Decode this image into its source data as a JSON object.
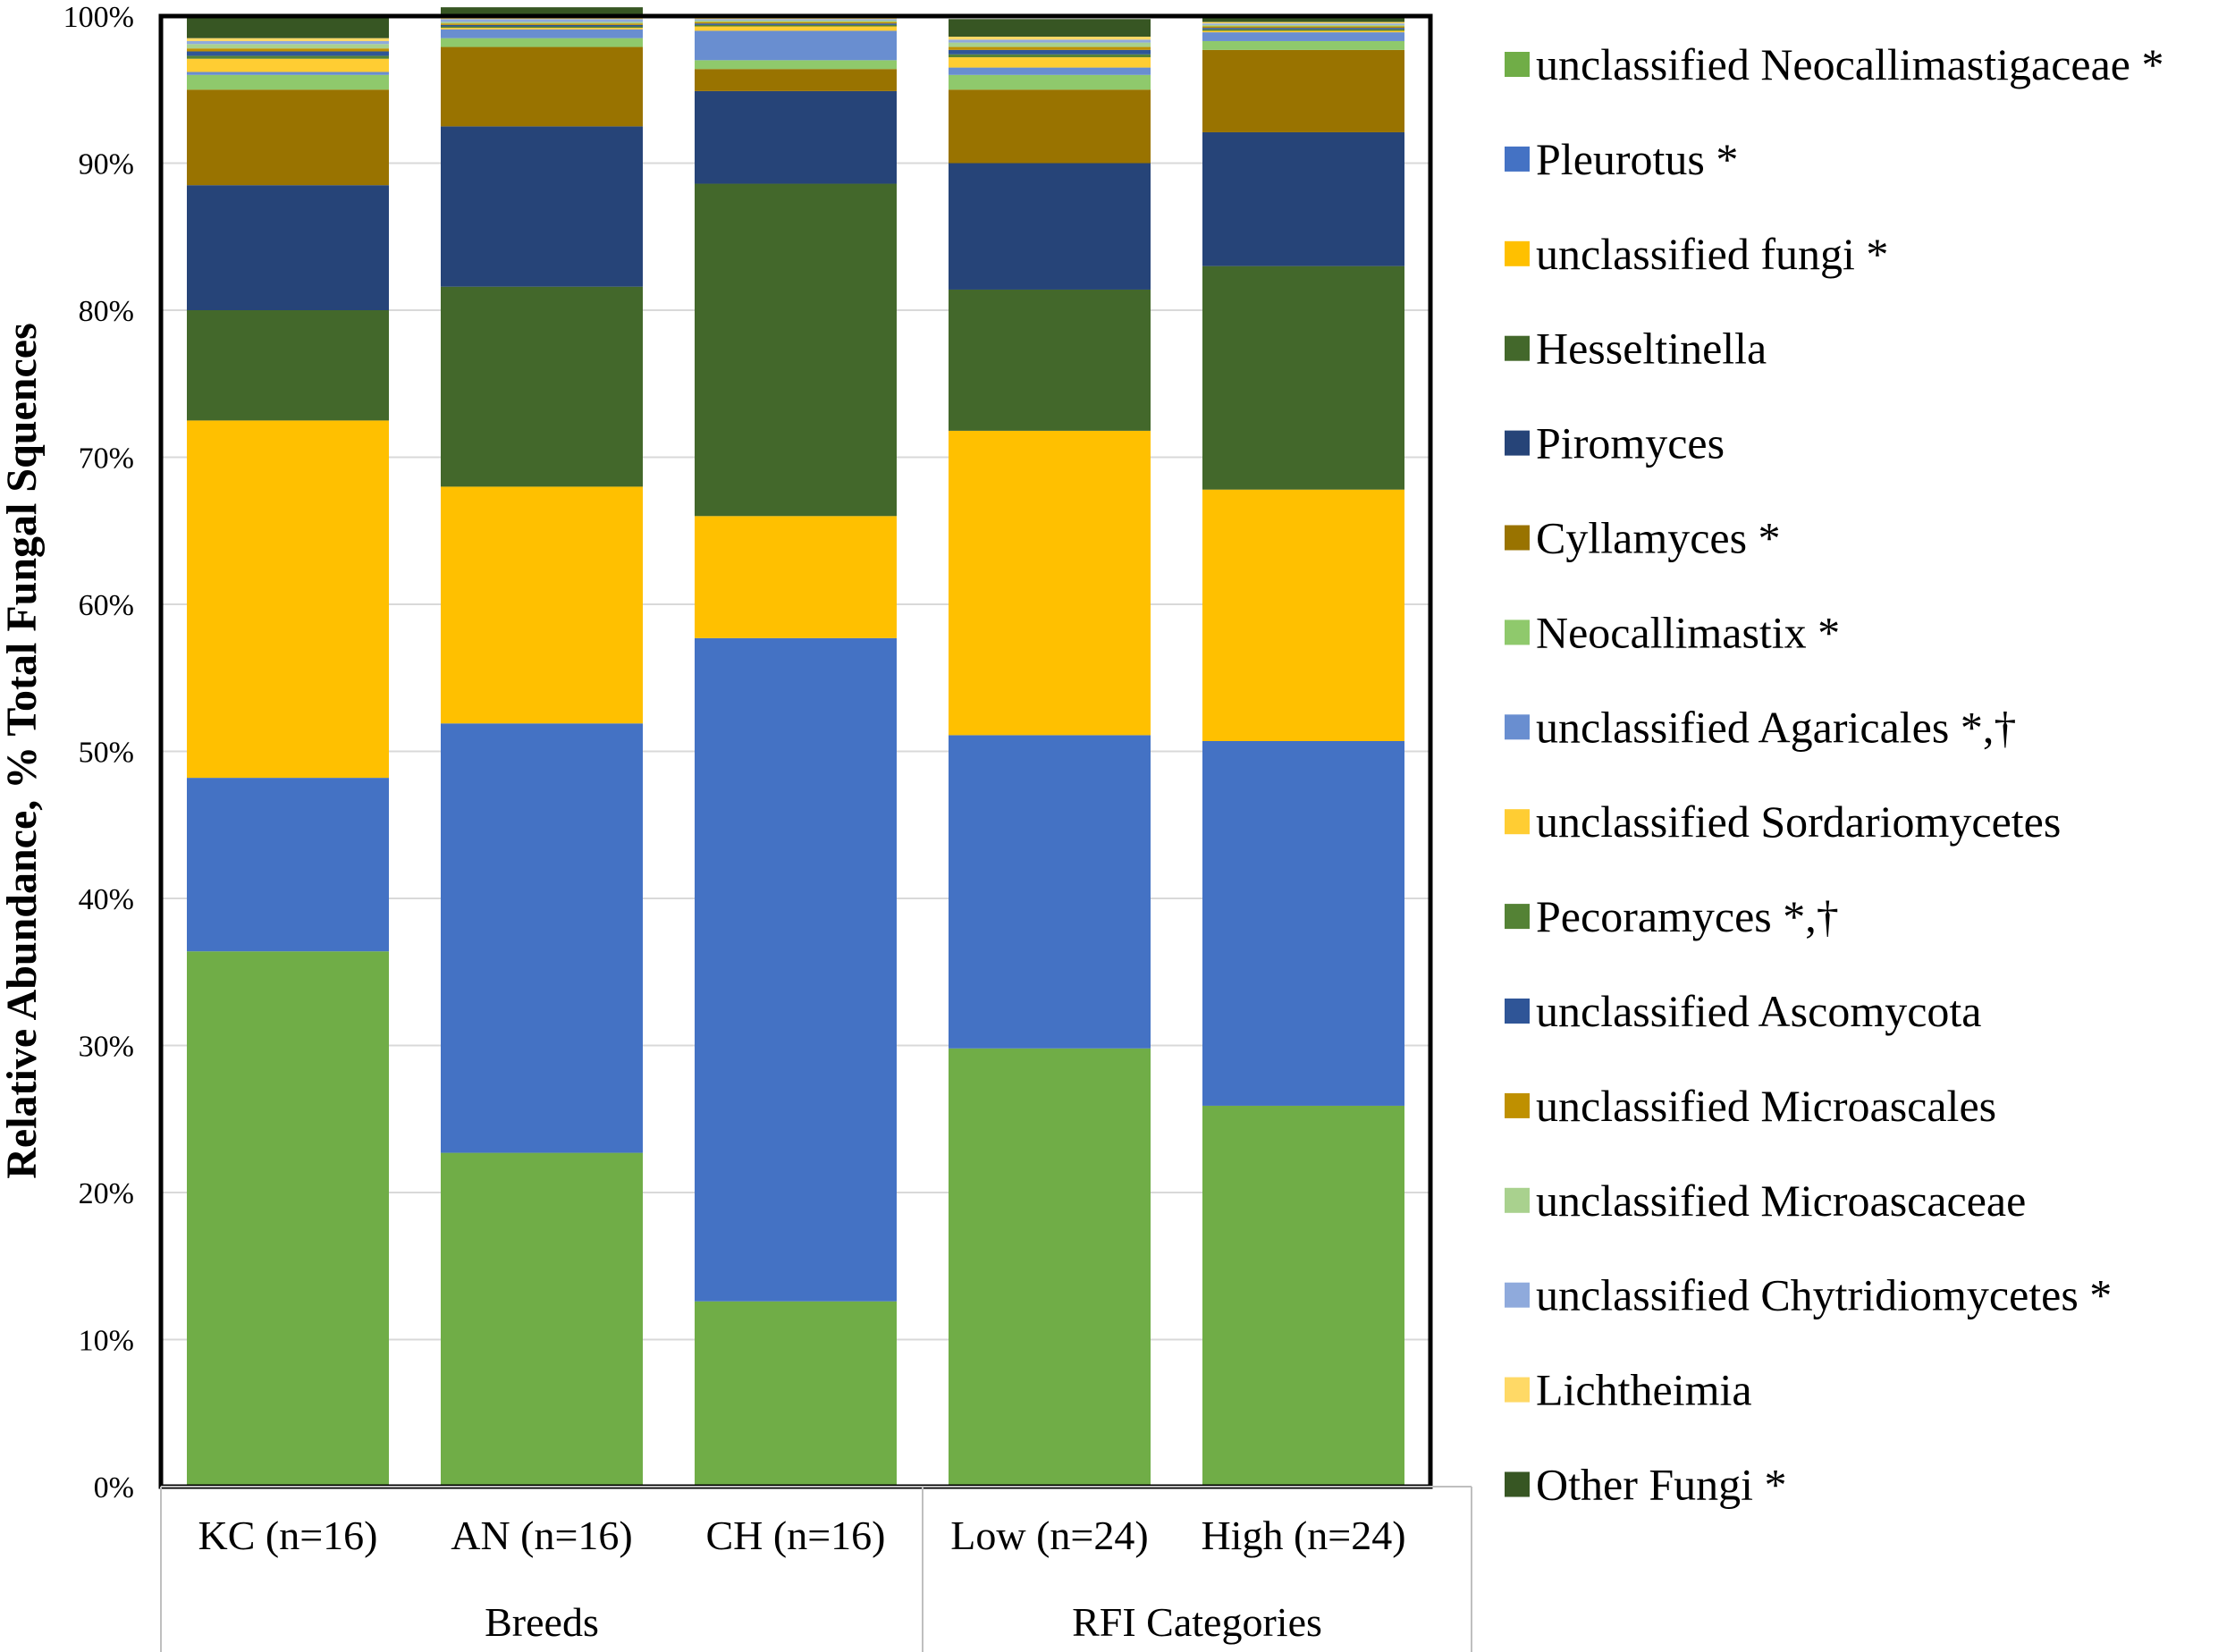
{
  "chart_data": {
    "type": "bar",
    "stacked": true,
    "ylabel": "Relative Abundance,  % Total Fungal Squences",
    "ylim": [
      0,
      100
    ],
    "y_ticks": [
      "0%",
      "10%",
      "20%",
      "30%",
      "40%",
      "50%",
      "60%",
      "70%",
      "80%",
      "90%",
      "100%"
    ],
    "categories": [
      "KC (n=16)",
      "AN (n=16)",
      "CH (n=16)",
      "Low (n=24)",
      "High (n=24)"
    ],
    "groups": [
      {
        "label": "Breeds",
        "span": [
          0,
          2
        ]
      },
      {
        "label": "RFI Categories",
        "span": [
          3,
          4
        ]
      }
    ],
    "grid": true,
    "legend_position": "right",
    "series": [
      {
        "name": "unclassified Neocallimastigaceae *",
        "color": "#70AD47",
        "values": [
          36.4,
          22.7,
          12.6,
          29.8,
          25.9
        ]
      },
      {
        "name": "Pleurotus *",
        "color": "#4472C4",
        "values": [
          11.8,
          29.2,
          45.1,
          21.3,
          24.8
        ]
      },
      {
        "name": "unclassified fungi *",
        "color": "#FFC000",
        "values": [
          24.3,
          16.1,
          8.3,
          20.7,
          17.1
        ]
      },
      {
        "name": "Hesseltinella",
        "color": "#43682B",
        "values": [
          7.5,
          13.6,
          22.6,
          9.6,
          15.2
        ]
      },
      {
        "name": "Piromyces",
        "color": "#264478",
        "values": [
          8.5,
          10.9,
          6.3,
          8.6,
          9.1
        ]
      },
      {
        "name": "Cyllamyces *",
        "color": "#997300",
        "values": [
          6.5,
          5.4,
          1.5,
          5.0,
          5.6
        ]
      },
      {
        "name": "Neocallimastix *",
        "color": "#8FC96C",
        "values": [
          1.0,
          0.6,
          0.6,
          1.0,
          0.6
        ]
      },
      {
        "name": "unclassified Agaricales *,†",
        "color": "#698ED0",
        "values": [
          0.2,
          0.6,
          2.0,
          0.5,
          0.6
        ]
      },
      {
        "name": "unclassified Sordariomycetes",
        "color": "#FFCD33",
        "values": [
          0.9,
          0.1,
          0.3,
          0.7,
          0.1
        ]
      },
      {
        "name": "Pecoramyces *,†",
        "color": "#548235",
        "values": [
          0.2,
          0.1,
          0.1,
          0.2,
          0.1
        ]
      },
      {
        "name": "unclassified Ascomycota",
        "color": "#2F5597",
        "values": [
          0.3,
          0.1,
          0.1,
          0.3,
          0.1
        ]
      },
      {
        "name": "unclassified Microascales",
        "color": "#BF9000",
        "values": [
          0.2,
          0.1,
          0.1,
          0.2,
          0.1
        ]
      },
      {
        "name": "unclassified Microascaceae",
        "color": "#A9D18E",
        "values": [
          0.3,
          0.1,
          0.1,
          0.3,
          0.1
        ]
      },
      {
        "name": "unclassified Chytridiomycetes *",
        "color": "#8FAADC",
        "values": [
          0.2,
          0.2,
          0.1,
          0.2,
          0.1
        ]
      },
      {
        "name": "Lichtheimia",
        "color": "#FFD966",
        "values": [
          0.2,
          0.1,
          0.1,
          0.2,
          0.1
        ]
      },
      {
        "name": "Other Fungi *",
        "color": "#375623",
        "values": [
          1.5,
          0.7,
          0.1,
          1.2,
          0.5
        ]
      }
    ]
  }
}
